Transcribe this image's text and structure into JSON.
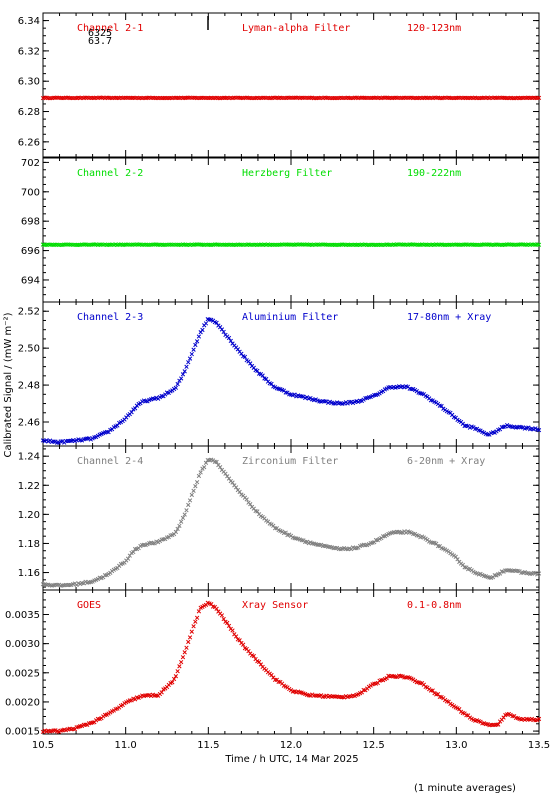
{
  "figure": {
    "xlabel": "Time / h UTC, 14 Mar 2025",
    "ylabel": "Calibrated Signal / (mW m⁻²)",
    "note": "(1 minute averages)",
    "top_marker_text": [
      "6325",
      "63.7"
    ]
  },
  "chart_data": [
    {
      "type": "scatter",
      "channel": "Channel 2-1",
      "filter": "Lyman-alpha Filter",
      "band": "120-123nm",
      "color": "#e00000",
      "xlim": [
        10.5,
        13.5
      ],
      "ylim": [
        6.25,
        6.345
      ],
      "yticks": [
        "6.26",
        "6.28",
        "6.30",
        "6.32",
        "6.34"
      ],
      "x": [
        10.5,
        11.0,
        11.5,
        12.0,
        12.5,
        13.0,
        13.5
      ],
      "y": [
        6.289,
        6.289,
        6.289,
        6.289,
        6.289,
        6.289,
        6.289
      ]
    },
    {
      "type": "scatter",
      "channel": "Channel 2-2",
      "filter": "Herzberg Filter",
      "band": "190-222nm",
      "color": "#00dd00",
      "xlim": [
        10.5,
        13.5
      ],
      "ylim": [
        692.5,
        702.3
      ],
      "yticks": [
        "694",
        "696",
        "698",
        "700",
        "702"
      ],
      "x": [
        10.5,
        11.0,
        11.5,
        12.0,
        12.5,
        13.0,
        13.5
      ],
      "y": [
        696.4,
        696.4,
        696.4,
        696.4,
        696.4,
        696.4,
        696.4
      ]
    },
    {
      "type": "scatter",
      "channel": "Channel 2-3",
      "filter": "Aluminium Filter",
      "band": "17-80nm + Xray",
      "color": "#0000cc",
      "xlim": [
        10.5,
        13.5
      ],
      "ylim": [
        2.447,
        2.525
      ],
      "yticks": [
        "2.46",
        "2.48",
        "2.50",
        "2.52"
      ],
      "x": [
        10.5,
        10.6,
        10.7,
        10.8,
        10.9,
        11.0,
        11.05,
        11.1,
        11.2,
        11.3,
        11.35,
        11.4,
        11.45,
        11.5,
        11.55,
        11.6,
        11.7,
        11.8,
        11.9,
        12.0,
        12.1,
        12.2,
        12.3,
        12.4,
        12.5,
        12.6,
        12.7,
        12.8,
        12.9,
        13.0,
        13.05,
        13.1,
        13.2,
        13.3,
        13.4,
        13.5
      ],
      "y": [
        2.45,
        2.449,
        2.45,
        2.451,
        2.455,
        2.462,
        2.467,
        2.471,
        2.473,
        2.478,
        2.486,
        2.497,
        2.508,
        2.516,
        2.514,
        2.508,
        2.497,
        2.487,
        2.479,
        2.475,
        2.473,
        2.471,
        2.47,
        2.471,
        2.474,
        2.479,
        2.479,
        2.475,
        2.469,
        2.462,
        2.458,
        2.457,
        2.453,
        2.458,
        2.457,
        2.456
      ]
    },
    {
      "type": "scatter",
      "channel": "Channel 2-4",
      "filter": "Zirconium Filter",
      "band": "6-20nm + Xray",
      "color": "#808080",
      "xlim": [
        10.5,
        13.5
      ],
      "ylim": [
        1.148,
        1.247
      ],
      "yticks": [
        "1.16",
        "1.18",
        "1.20",
        "1.22",
        "1.24"
      ],
      "x": [
        10.5,
        10.6,
        10.7,
        10.8,
        10.9,
        11.0,
        11.05,
        11.1,
        11.2,
        11.3,
        11.35,
        11.4,
        11.45,
        11.5,
        11.55,
        11.6,
        11.7,
        11.8,
        11.9,
        12.0,
        12.1,
        12.2,
        12.3,
        12.4,
        12.5,
        12.6,
        12.7,
        12.8,
        12.9,
        13.0,
        13.05,
        13.1,
        13.2,
        13.3,
        13.4,
        13.5
      ],
      "y": [
        1.152,
        1.151,
        1.152,
        1.154,
        1.159,
        1.168,
        1.175,
        1.179,
        1.181,
        1.187,
        1.198,
        1.213,
        1.228,
        1.238,
        1.236,
        1.228,
        1.214,
        1.201,
        1.191,
        1.185,
        1.181,
        1.178,
        1.176,
        1.177,
        1.181,
        1.187,
        1.188,
        1.184,
        1.178,
        1.17,
        1.164,
        1.161,
        1.156,
        1.162,
        1.16,
        1.159
      ]
    },
    {
      "type": "scatter",
      "channel": "GOES",
      "filter": "Xray Sensor",
      "band": "0.1-0.8nm",
      "color": "#e00000",
      "xlim": [
        10.5,
        13.5
      ],
      "ylim": [
        0.00145,
        0.00392
      ],
      "yticks": [
        "0.0015",
        "0.0020",
        "0.0025",
        "0.0030",
        "0.0035"
      ],
      "x": [
        10.5,
        10.6,
        10.7,
        10.8,
        10.9,
        11.0,
        11.05,
        11.1,
        11.2,
        11.3,
        11.35,
        11.4,
        11.45,
        11.5,
        11.55,
        11.6,
        11.7,
        11.8,
        11.9,
        12.0,
        12.1,
        12.2,
        12.3,
        12.4,
        12.5,
        12.6,
        12.7,
        12.8,
        12.9,
        13.0,
        13.1,
        13.2,
        13.25,
        13.3,
        13.4,
        13.5
      ],
      "y": [
        0.0015,
        0.0015,
        0.00155,
        0.00165,
        0.0018,
        0.00198,
        0.00205,
        0.0021,
        0.00212,
        0.0024,
        0.0028,
        0.0032,
        0.0036,
        0.0037,
        0.0036,
        0.0034,
        0.003,
        0.0027,
        0.0024,
        0.0022,
        0.00212,
        0.0021,
        0.00208,
        0.00212,
        0.0023,
        0.00245,
        0.00243,
        0.0023,
        0.0021,
        0.0019,
        0.0017,
        0.0016,
        0.0016,
        0.0018,
        0.0017,
        0.0017
      ]
    }
  ],
  "x_axis": {
    "ticks": [
      "10.5",
      "11.0",
      "11.5",
      "12.0",
      "12.5",
      "13.0",
      "13.5"
    ]
  }
}
